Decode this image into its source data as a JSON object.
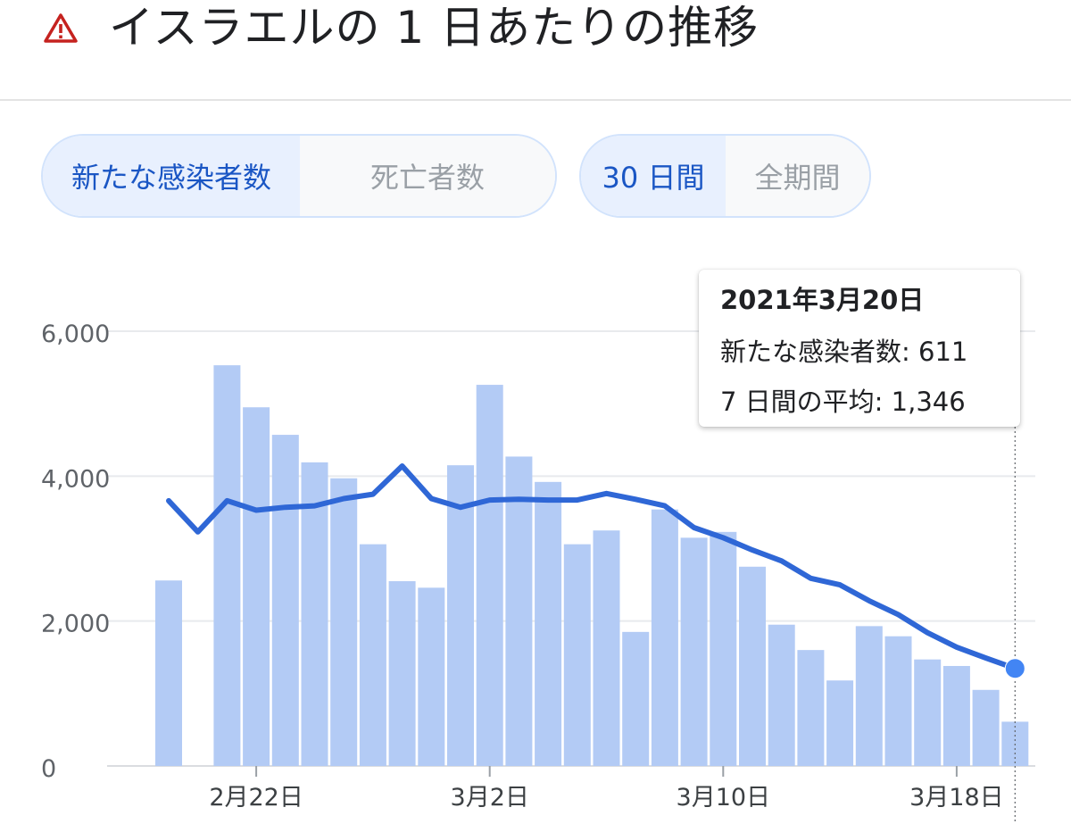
{
  "header": {
    "title": "イスラエルの 1 日あたりの推移",
    "icon": "warning-triangle-icon",
    "icon_color": "#c5221f"
  },
  "metric_toggle": [
    {
      "label": "新たな感染者数",
      "active": true
    },
    {
      "label": "死亡者数",
      "active": false
    }
  ],
  "range_toggle": [
    {
      "label": "30 日間",
      "active": true
    },
    {
      "label": "全期間",
      "active": false
    }
  ],
  "tooltip": {
    "date": "2021年3月20日",
    "cases_label": "新たな感染者数",
    "cases_value": "611",
    "avg_label": "7 日間の平均",
    "avg_value": "1,346"
  },
  "colors": {
    "bar": "#b3cbf5",
    "line": "#2f67d6",
    "grid": "#e8eaed",
    "accent_text": "#1a56c4"
  },
  "chart_data": {
    "type": "bar",
    "title": "",
    "xlabel": "",
    "ylabel": "",
    "ylim": [
      0,
      6000
    ],
    "y_ticks": [
      0,
      2000,
      4000,
      6000
    ],
    "y_tick_labels": [
      "0",
      "2,000",
      "4,000",
      "6,000"
    ],
    "x_tick_labels": [
      "2月22日",
      "3月2日",
      "3月10日",
      "3月18日"
    ],
    "x_tick_dates": [
      "2021-02-22",
      "2021-03-02",
      "2021-03-10",
      "2021-03-18"
    ],
    "grid": true,
    "dates": [
      "2021-02-19",
      "2021-02-20",
      "2021-02-21",
      "2021-02-22",
      "2021-02-23",
      "2021-02-24",
      "2021-02-25",
      "2021-02-26",
      "2021-02-27",
      "2021-02-28",
      "2021-03-01",
      "2021-03-02",
      "2021-03-03",
      "2021-03-04",
      "2021-03-05",
      "2021-03-06",
      "2021-03-07",
      "2021-03-08",
      "2021-03-09",
      "2021-03-10",
      "2021-03-11",
      "2021-03-12",
      "2021-03-13",
      "2021-03-14",
      "2021-03-15",
      "2021-03-16",
      "2021-03-17",
      "2021-03-18",
      "2021-03-19",
      "2021-03-20"
    ],
    "series": [
      {
        "name": "新たな感染者数",
        "type": "bar",
        "values": [
          2560,
          null,
          5530,
          4950,
          4570,
          4190,
          3970,
          3060,
          2550,
          2460,
          4150,
          5260,
          4270,
          3920,
          3060,
          3250,
          1850,
          3540,
          3150,
          3230,
          2750,
          1950,
          1600,
          1180,
          1930,
          1790,
          1470,
          1380,
          1050,
          611
        ]
      },
      {
        "name": "7 日間の平均",
        "type": "line",
        "values": [
          3660,
          3230,
          3660,
          3530,
          3570,
          3590,
          3690,
          3750,
          4140,
          3690,
          3570,
          3670,
          3680,
          3670,
          3670,
          3760,
          3680,
          3590,
          3290,
          3150,
          2980,
          2830,
          2590,
          2500,
          2280,
          2090,
          1840,
          1640,
          1490,
          1346
        ]
      }
    ]
  }
}
